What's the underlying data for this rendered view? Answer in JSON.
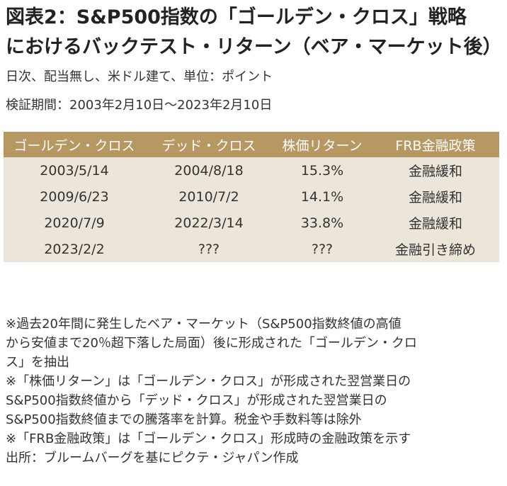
{
  "title": {
    "line1": "図表2：S&P500指数の「ゴールデン・クロス」戦略",
    "line2": "におけるバックテスト・リターン（ベア・マーケット後）"
  },
  "subtitle": {
    "line1": "日次、配当無し、米ドル建て、単位：ポイント",
    "line2": "検証期間：2003年2月10日～2023年2月10日"
  },
  "table": {
    "headers": [
      "ゴールデン・クロス",
      "デッド・クロス",
      "株価リターン",
      "FRB金融政策"
    ],
    "rows": [
      [
        "2003/5/14",
        "2004/8/18",
        "15.3%",
        "金融緩和"
      ],
      [
        "2009/6/23",
        "2010/7/2",
        "14.1%",
        "金融緩和"
      ],
      [
        "2020/7/9",
        "2022/3/14",
        "33.8%",
        "金融緩和"
      ],
      [
        "2023/2/2",
        "???",
        "???",
        "金融引き締め"
      ]
    ]
  },
  "notes": [
    "※過去20年間に発生したベア・マーケット（S&P500指数終値の高値",
    "から安値まで20％超下落した局面）後に形成された「ゴールデン・クロ",
    "ス」を抽出",
    "※「株価リターン」は「ゴールデン・クロス」が形成された翌営業日の",
    "S&P500指数終値から「デッド・クロス」が形成された翌営業日の",
    "S&P500指数終値までの騰落率を計算。税金や手数料等は除外",
    "※「FRB金融政策」は「ゴールデン・クロス」形成時の金融政策を示す",
    "出所：ブルームバーグを基にピクテ・ジャパン作成"
  ],
  "colors": {
    "header_bg": "#b79762",
    "row_bg": "#ece5d9"
  }
}
